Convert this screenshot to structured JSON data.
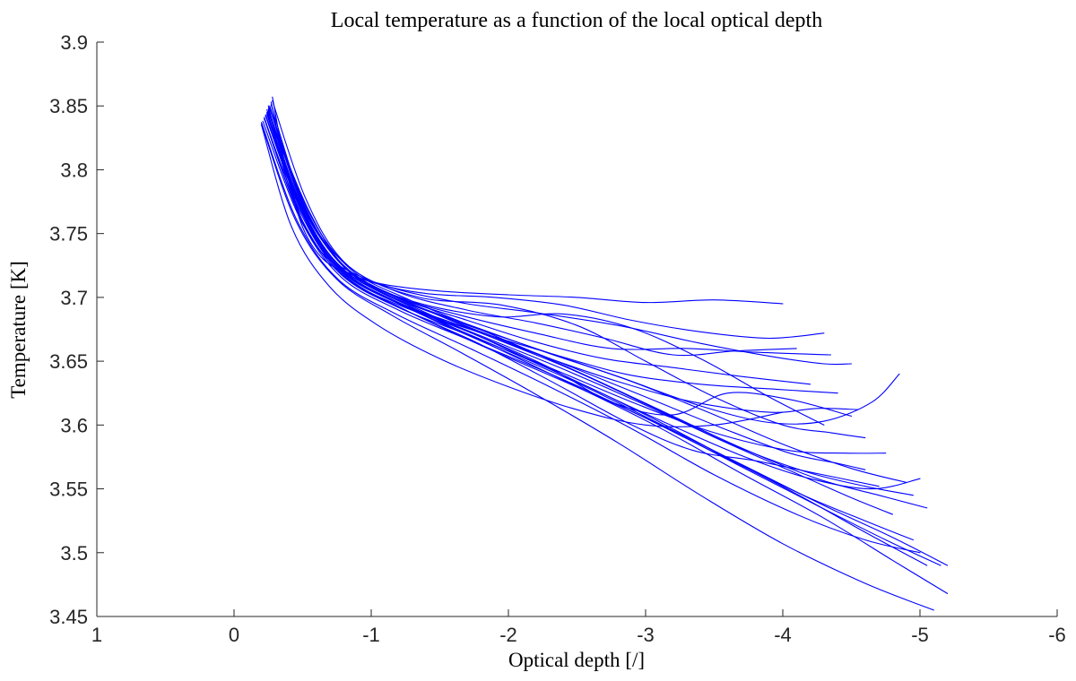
{
  "chart_data": {
    "type": "line",
    "title": "Local temperature as a function of the local optical depth",
    "xlabel": "Optical depth [/]",
    "ylabel": "Temperature [K]",
    "xlim": [
      1,
      -6
    ],
    "ylim": [
      3.45,
      3.9
    ],
    "x_ticks": [
      1,
      0,
      -1,
      -2,
      -3,
      -4,
      -5,
      -6
    ],
    "y_ticks": [
      3.45,
      3.5,
      3.55,
      3.6,
      3.65,
      3.7,
      3.75,
      3.8,
      3.85,
      3.9
    ],
    "x_reversed": true,
    "grid": false,
    "legend_position": "none",
    "line_color": "#0000ff",
    "axis_color": "#262626",
    "series": [
      {
        "x": [
          -0.28,
          -0.38,
          -0.5,
          -0.65,
          -0.85,
          -1.1,
          -1.5,
          -2.0,
          -2.5,
          -3.0,
          -3.5,
          -4.0
        ],
        "y": [
          3.857,
          3.8,
          3.755,
          3.73,
          3.718,
          3.71,
          3.705,
          3.702,
          3.7,
          3.696,
          3.698,
          3.695
        ]
      },
      {
        "x": [
          -0.27,
          -0.4,
          -0.55,
          -0.75,
          -1.0,
          -1.4,
          -1.9,
          -2.4,
          -2.9,
          -3.4,
          -3.9,
          -4.3
        ],
        "y": [
          3.853,
          3.792,
          3.748,
          3.725,
          3.712,
          3.703,
          3.7,
          3.694,
          3.682,
          3.673,
          3.668,
          3.672
        ]
      },
      {
        "x": [
          -0.25,
          -0.4,
          -0.6,
          -0.85,
          -1.2,
          -1.7,
          -2.2,
          -2.8,
          -3.4,
          -3.9,
          -4.3,
          -4.5
        ],
        "y": [
          3.85,
          3.787,
          3.74,
          3.72,
          3.706,
          3.695,
          3.688,
          3.678,
          3.664,
          3.654,
          3.648,
          3.648
        ]
      },
      {
        "x": [
          -0.24,
          -0.45,
          -0.7,
          -1.1,
          -1.6,
          -2.2,
          -2.8,
          -3.4,
          -3.9,
          -4.3,
          -4.65,
          -4.85
        ],
        "y": [
          3.847,
          3.778,
          3.73,
          3.703,
          3.682,
          3.66,
          3.638,
          3.615,
          3.602,
          3.603,
          3.618,
          3.64
        ]
      },
      {
        "x": [
          -0.26,
          -0.5,
          -0.8,
          -1.2,
          -1.7,
          -2.3,
          -2.9,
          -3.5,
          -4.0,
          -4.5,
          -4.9
        ],
        "y": [
          3.849,
          3.772,
          3.724,
          3.699,
          3.679,
          3.656,
          3.634,
          3.608,
          3.585,
          3.566,
          3.555
        ]
      },
      {
        "x": [
          -0.23,
          -0.5,
          -0.8,
          -1.2,
          -1.8,
          -2.4,
          -3.0,
          -3.6,
          -4.1,
          -4.6,
          -5.05
        ],
        "y": [
          3.842,
          3.766,
          3.72,
          3.695,
          3.667,
          3.639,
          3.608,
          3.574,
          3.546,
          3.516,
          3.49
        ]
      },
      {
        "x": [
          -0.2,
          -0.45,
          -0.75,
          -1.15,
          -1.65,
          -2.2,
          -2.8,
          -3.4,
          -4.0,
          -4.6,
          -5.1
        ],
        "y": [
          3.836,
          3.76,
          3.714,
          3.686,
          3.657,
          3.624,
          3.586,
          3.545,
          3.507,
          3.476,
          3.455
        ]
      },
      {
        "x": [
          -0.25,
          -0.55,
          -0.85,
          -1.3,
          -1.9,
          -2.5,
          -3.1,
          -3.7,
          -4.3,
          -4.8,
          -5.2
        ],
        "y": [
          3.845,
          3.767,
          3.719,
          3.692,
          3.661,
          3.63,
          3.598,
          3.562,
          3.527,
          3.494,
          3.468
        ]
      },
      {
        "x": [
          -0.22,
          -0.5,
          -0.8,
          -1.25,
          -1.85,
          -2.45,
          -3.05,
          -3.65,
          -4.25,
          -4.75,
          -5.15
        ],
        "y": [
          3.84,
          3.763,
          3.717,
          3.69,
          3.66,
          3.632,
          3.603,
          3.57,
          3.537,
          3.51,
          3.49
        ]
      },
      {
        "x": [
          -0.24,
          -0.5,
          -0.8,
          -1.2,
          -1.75,
          -2.35,
          -2.95,
          -3.55,
          -4.1,
          -4.5,
          -4.8
        ],
        "y": [
          3.844,
          3.768,
          3.721,
          3.696,
          3.672,
          3.646,
          3.618,
          3.588,
          3.562,
          3.543,
          3.53
        ]
      },
      {
        "x": [
          -0.26,
          -0.52,
          -0.82,
          -1.25,
          -1.8,
          -2.4,
          -3.0,
          -3.55,
          -4.05,
          -4.4,
          -4.6
        ],
        "y": [
          3.848,
          3.77,
          3.722,
          3.697,
          3.673,
          3.648,
          3.622,
          3.598,
          3.578,
          3.57,
          3.565
        ]
      },
      {
        "x": [
          -0.21,
          -0.48,
          -0.78,
          -1.2,
          -1.75,
          -2.35,
          -2.95,
          -3.55,
          -4.15,
          -4.6,
          -4.95
        ],
        "y": [
          3.838,
          3.762,
          3.716,
          3.69,
          3.665,
          3.638,
          3.608,
          3.576,
          3.545,
          3.525,
          3.51
        ]
      },
      {
        "x": [
          -0.25,
          -0.5,
          -0.85,
          -1.3,
          -1.9,
          -2.4,
          -2.9,
          -3.4,
          -3.9,
          -4.3
        ],
        "y": [
          3.846,
          3.77,
          3.72,
          3.697,
          3.685,
          3.687,
          3.676,
          3.652,
          3.622,
          3.6
        ]
      },
      {
        "x": [
          -0.23,
          -0.5,
          -0.8,
          -1.25,
          -1.8,
          -2.3,
          -2.75,
          -3.2,
          -3.6,
          -4.05,
          -4.5
        ],
        "y": [
          3.843,
          3.766,
          3.719,
          3.693,
          3.669,
          3.645,
          3.618,
          3.608,
          3.625,
          3.62,
          3.607
        ]
      },
      {
        "x": [
          -0.27,
          -0.5,
          -0.78,
          -1.15,
          -1.65,
          -2.2,
          -2.75,
          -3.3,
          -3.8,
          -4.35
        ],
        "y": [
          3.851,
          3.775,
          3.727,
          3.702,
          3.686,
          3.672,
          3.66,
          3.66,
          3.657,
          3.655
        ]
      },
      {
        "x": [
          -0.24,
          -0.5,
          -0.8,
          -1.2,
          -1.7,
          -2.25,
          -2.8,
          -3.35,
          -3.9,
          -4.25,
          -4.55
        ],
        "y": [
          3.845,
          3.769,
          3.721,
          3.696,
          3.676,
          3.654,
          3.634,
          3.618,
          3.61,
          3.613,
          3.612
        ]
      },
      {
        "x": [
          -0.22,
          -0.48,
          -0.78,
          -1.2,
          -1.72,
          -2.3,
          -2.9,
          -3.5,
          -4.05,
          -4.45,
          -4.75
        ],
        "y": [
          3.841,
          3.764,
          3.718,
          3.692,
          3.67,
          3.645,
          3.618,
          3.594,
          3.58,
          3.578,
          3.578
        ]
      },
      {
        "x": [
          -0.25,
          -0.52,
          -0.82,
          -1.28,
          -1.85,
          -2.45,
          -3.05,
          -3.6,
          -4.15,
          -4.6,
          -4.95
        ],
        "y": [
          3.847,
          3.77,
          3.722,
          3.696,
          3.67,
          3.644,
          3.614,
          3.586,
          3.564,
          3.552,
          3.545
        ]
      },
      {
        "x": [
          -0.2,
          -0.46,
          -0.76,
          -1.18,
          -1.72,
          -2.3,
          -2.9,
          -3.5,
          -4.1,
          -4.6,
          -5.0
        ],
        "y": [
          3.837,
          3.76,
          3.714,
          3.687,
          3.66,
          3.63,
          3.597,
          3.561,
          3.53,
          3.51,
          3.5
        ]
      },
      {
        "x": [
          -0.26,
          -0.5,
          -0.8,
          -1.2,
          -1.7,
          -2.2,
          -2.7,
          -3.2,
          -3.7,
          -4.2
        ],
        "y": [
          3.85,
          3.773,
          3.725,
          3.7,
          3.682,
          3.665,
          3.652,
          3.645,
          3.638,
          3.632
        ]
      },
      {
        "x": [
          -0.23,
          -0.5,
          -0.8,
          -1.25,
          -1.8,
          -2.35,
          -2.9,
          -3.35,
          -3.8,
          -4.25,
          -4.7
        ],
        "y": [
          3.842,
          3.765,
          3.718,
          3.69,
          3.663,
          3.632,
          3.6,
          3.58,
          3.572,
          3.562,
          3.552
        ]
      },
      {
        "x": [
          -0.24,
          -0.5,
          -0.82,
          -1.3,
          -1.9,
          -2.5,
          -3.1,
          -3.7,
          -4.2,
          -4.65,
          -5.0
        ],
        "y": [
          3.844,
          3.767,
          3.72,
          3.693,
          3.664,
          3.634,
          3.604,
          3.576,
          3.558,
          3.55,
          3.558
        ]
      },
      {
        "x": [
          -0.28,
          -0.52,
          -0.8,
          -1.2,
          -1.7,
          -2.2,
          -2.7,
          -3.2,
          -3.65,
          -4.1
        ],
        "y": [
          3.854,
          3.778,
          3.728,
          3.704,
          3.69,
          3.68,
          3.668,
          3.655,
          3.658,
          3.66
        ]
      },
      {
        "x": [
          -0.22,
          -0.48,
          -0.78,
          -1.2,
          -1.72,
          -2.28,
          -2.85,
          -3.4,
          -3.95,
          -4.4
        ],
        "y": [
          3.84,
          3.764,
          3.718,
          3.694,
          3.675,
          3.657,
          3.64,
          3.632,
          3.628,
          3.625
        ]
      },
      {
        "x": [
          -0.25,
          -0.5,
          -0.85,
          -1.35,
          -1.95,
          -2.5,
          -3.0,
          -3.5,
          -4.0,
          -4.35,
          -4.6
        ],
        "y": [
          3.848,
          3.771,
          3.723,
          3.7,
          3.694,
          3.678,
          3.65,
          3.622,
          3.6,
          3.594,
          3.59
        ]
      },
      {
        "x": [
          -0.26,
          -0.52,
          -0.84,
          -1.3,
          -1.9,
          -2.5,
          -3.1,
          -3.7,
          -4.25,
          -4.7,
          -5.05
        ],
        "y": [
          3.849,
          3.772,
          3.723,
          3.697,
          3.67,
          3.642,
          3.612,
          3.582,
          3.558,
          3.545,
          3.535
        ]
      },
      {
        "x": [
          -0.2,
          -0.42,
          -0.7,
          -1.05,
          -1.5,
          -2.0,
          -2.5,
          -3.0,
          -3.5,
          -4.0
        ],
        "y": [
          3.835,
          3.755,
          3.708,
          3.678,
          3.652,
          3.63,
          3.612,
          3.6,
          3.6,
          3.61
        ]
      },
      {
        "x": [
          -0.24,
          -0.5,
          -0.8,
          -1.28,
          -1.88,
          -2.5,
          -3.12,
          -3.72,
          -4.3,
          -4.8,
          -5.2
        ],
        "y": [
          3.843,
          3.766,
          3.719,
          3.691,
          3.662,
          3.633,
          3.6,
          3.568,
          3.537,
          3.512,
          3.49
        ]
      }
    ]
  }
}
